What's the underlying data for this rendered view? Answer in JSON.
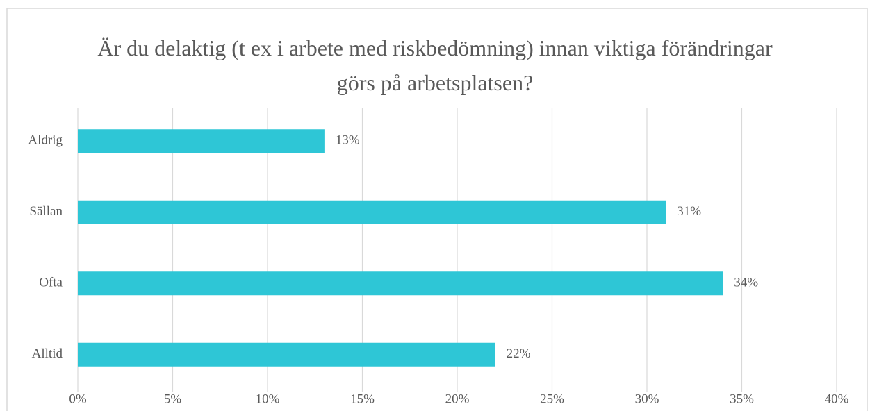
{
  "chart_data": {
    "type": "bar",
    "orientation": "horizontal",
    "title": "Är du delaktig (t ex i arbete med riskbedömning) innan viktiga förändringar görs på arbetsplatsen?",
    "categories": [
      "Aldrig",
      "Sällan",
      "Ofta",
      "Alltid"
    ],
    "values": [
      13,
      31,
      34,
      22
    ],
    "value_labels": [
      "13%",
      "31%",
      "34%",
      "22%"
    ],
    "color": "#2ec6d6",
    "xlim": [
      0,
      40
    ],
    "xticks": [
      {
        "value": 0,
        "label": "0%"
      },
      {
        "value": 5,
        "label": "5%"
      },
      {
        "value": 10,
        "label": "10%"
      },
      {
        "value": 15,
        "label": "15%"
      },
      {
        "value": 20,
        "label": "20%"
      },
      {
        "value": 25,
        "label": "25%"
      },
      {
        "value": 30,
        "label": "30%"
      },
      {
        "value": 35,
        "label": "35%"
      },
      {
        "value": 40,
        "label": "40%"
      }
    ],
    "grid": true
  }
}
